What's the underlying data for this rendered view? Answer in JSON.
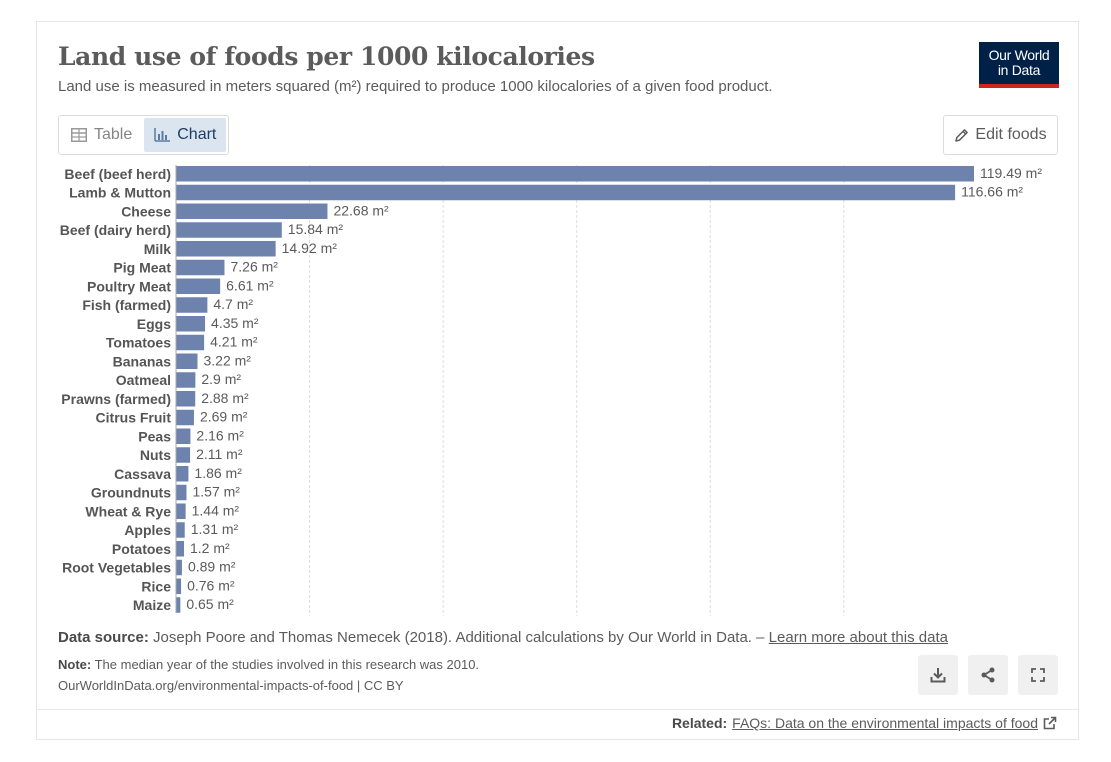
{
  "header": {
    "title": "Land use of foods per 1000 kilocalories",
    "subtitle": "Land use is measured in meters squared (m²) required to produce 1000 kilocalories of a given food product.",
    "logo_line1": "Our World",
    "logo_line2": "in Data"
  },
  "tabs": [
    {
      "label": "Table",
      "active": false
    },
    {
      "label": "Chart",
      "active": true
    }
  ],
  "edit_label": "Edit foods",
  "chart_data": {
    "type": "bar",
    "orientation": "horizontal",
    "unit": " m²",
    "bar_color": "#6d83ad",
    "xlim": [
      0,
      119.49
    ],
    "grid": true,
    "categories": [
      "Beef (beef herd)",
      "Lamb & Mutton",
      "Cheese",
      "Beef (dairy herd)",
      "Milk",
      "Pig Meat",
      "Poultry Meat",
      "Fish (farmed)",
      "Eggs",
      "Tomatoes",
      "Bananas",
      "Oatmeal",
      "Prawns (farmed)",
      "Citrus Fruit",
      "Peas",
      "Nuts",
      "Cassava",
      "Groundnuts",
      "Wheat & Rye",
      "Apples",
      "Potatoes",
      "Root Vegetables",
      "Rice",
      "Maize"
    ],
    "values": [
      119.49,
      116.66,
      22.68,
      15.84,
      14.92,
      7.26,
      6.61,
      4.7,
      4.35,
      4.21,
      3.22,
      2.9,
      2.88,
      2.69,
      2.16,
      2.11,
      1.86,
      1.57,
      1.44,
      1.31,
      1.2,
      0.89,
      0.76,
      0.65
    ],
    "value_labels": [
      "119.49 m²",
      "116.66 m²",
      "22.68 m²",
      "15.84 m²",
      "14.92 m²",
      "7.26 m²",
      "6.61 m²",
      "4.7 m²",
      "4.35 m²",
      "4.21 m²",
      "3.22 m²",
      "2.9 m²",
      "2.88 m²",
      "2.69 m²",
      "2.16 m²",
      "2.11 m²",
      "1.86 m²",
      "1.57 m²",
      "1.44 m²",
      "1.31 m²",
      "1.2 m²",
      "0.89 m²",
      "0.76 m²",
      "0.65 m²"
    ]
  },
  "footer": {
    "source_label": "Data source:",
    "source_text": "Joseph Poore and Thomas Nemecek (2018). Additional calculations by Our World in Data. –",
    "source_link": "Learn more about this data",
    "note_label": "Note:",
    "note_text": "The median year of the studies involved in this research was 2010.",
    "credit": "OurWorldInData.org/environmental-impacts-of-food | CC BY",
    "related_label": "Related:",
    "related_link": "FAQs: Data on the environmental impacts of food"
  },
  "icons": {
    "table": "table-icon",
    "chart": "bar-chart-icon",
    "edit": "pencil-icon",
    "download": "download-icon",
    "share": "share-icon",
    "fullscreen": "fullscreen-icon",
    "external": "external-link-icon"
  }
}
